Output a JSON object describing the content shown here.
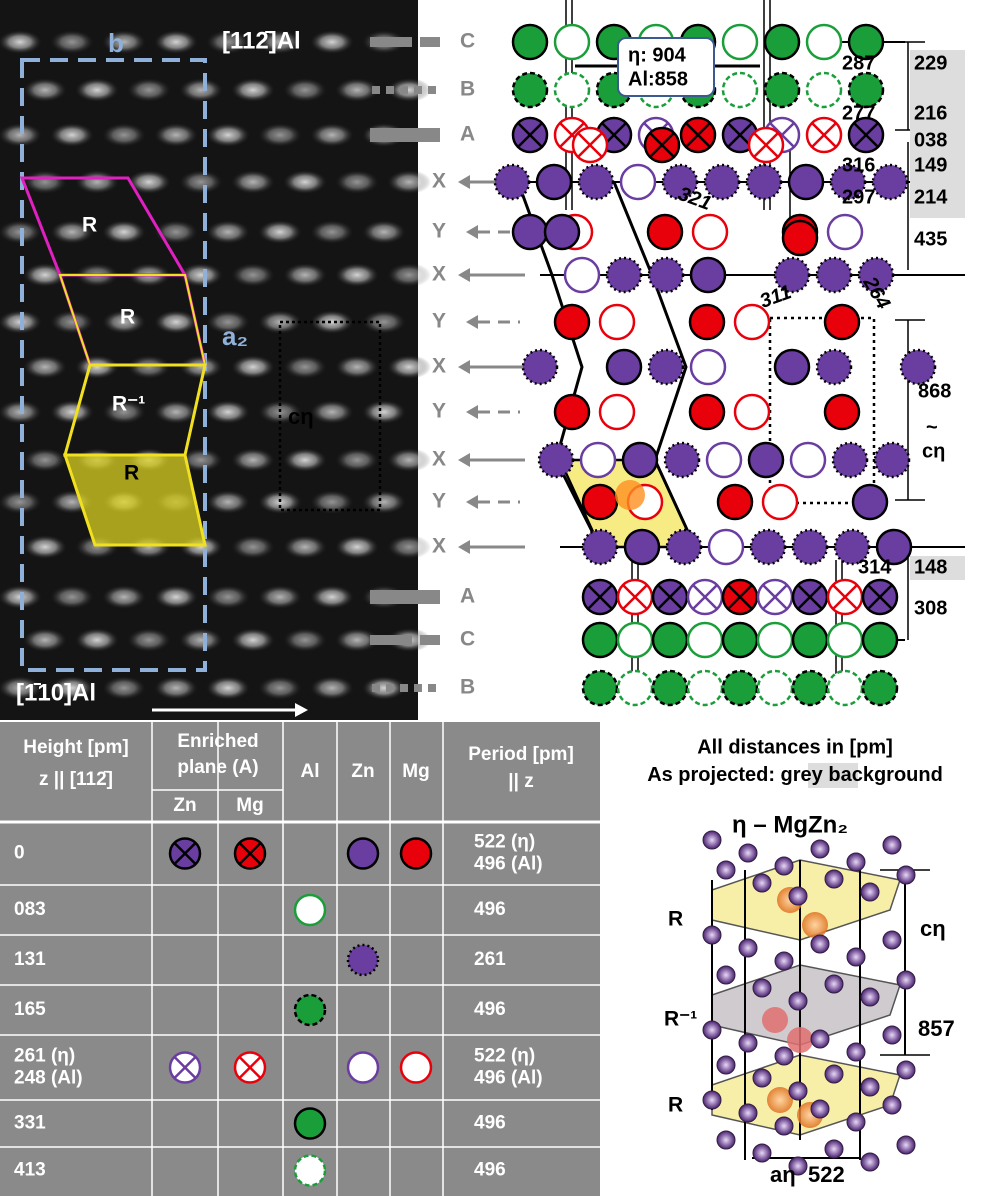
{
  "image_panel": {
    "b": "b",
    "direction_top": "[112̄]Al",
    "a2": "a₂",
    "c_eta": "cη",
    "cells": [
      "R",
      "R",
      "R⁻¹",
      "R"
    ],
    "direction_bottom": "[1̄10]Al"
  },
  "layers": [
    "C",
    "B",
    "A",
    "X",
    "Y",
    "X",
    "Y",
    "X",
    "Y",
    "X",
    "Y",
    "X",
    "A",
    "C",
    "B"
  ],
  "structure": {
    "box": [
      "η: 904",
      "Al:858"
    ],
    "distances": [
      "287",
      "229",
      "277",
      "216",
      "038",
      "316",
      "149",
      "297",
      "214",
      "435",
      "321",
      "311",
      "264",
      "868",
      "~",
      "cη",
      "314",
      "148",
      "308"
    ]
  },
  "table": {
    "header": {
      "height": "Height [pm]",
      "z": "z || [112̄]",
      "enriched": [
        "Enriched",
        "plane (A)"
      ],
      "zn": "Zn",
      "mg": "Mg",
      "al": "Al",
      "zn2": "Zn",
      "mg2": "Mg",
      "period": "Period [pm]",
      "pz": "|| z"
    },
    "rows": [
      {
        "height": [
          "0"
        ],
        "period": [
          "522  (η)",
          "496  (Al)"
        ]
      },
      {
        "height": [
          "083"
        ],
        "period": [
          "496"
        ]
      },
      {
        "height": [
          "131"
        ],
        "period": [
          "261"
        ]
      },
      {
        "height": [
          "165"
        ],
        "period": [
          "496"
        ]
      },
      {
        "height": [
          "261 (η)",
          "248 (Al)"
        ],
        "period": [
          "522  (η)",
          "496  (Al)"
        ]
      },
      {
        "height": [
          "331"
        ],
        "period": [
          "496"
        ]
      },
      {
        "height": [
          "413"
        ],
        "period": [
          "496"
        ]
      }
    ]
  },
  "notes": {
    "line1": "All distances in [pm]",
    "line2": [
      "As projected: ",
      "grey",
      " background"
    ]
  },
  "model": {
    "title": "η – MgZn₂",
    "cells": [
      "R",
      "R⁻¹",
      "R"
    ],
    "c": "cη",
    "c_value": "857",
    "a": "aη",
    "a_value": "522"
  }
}
